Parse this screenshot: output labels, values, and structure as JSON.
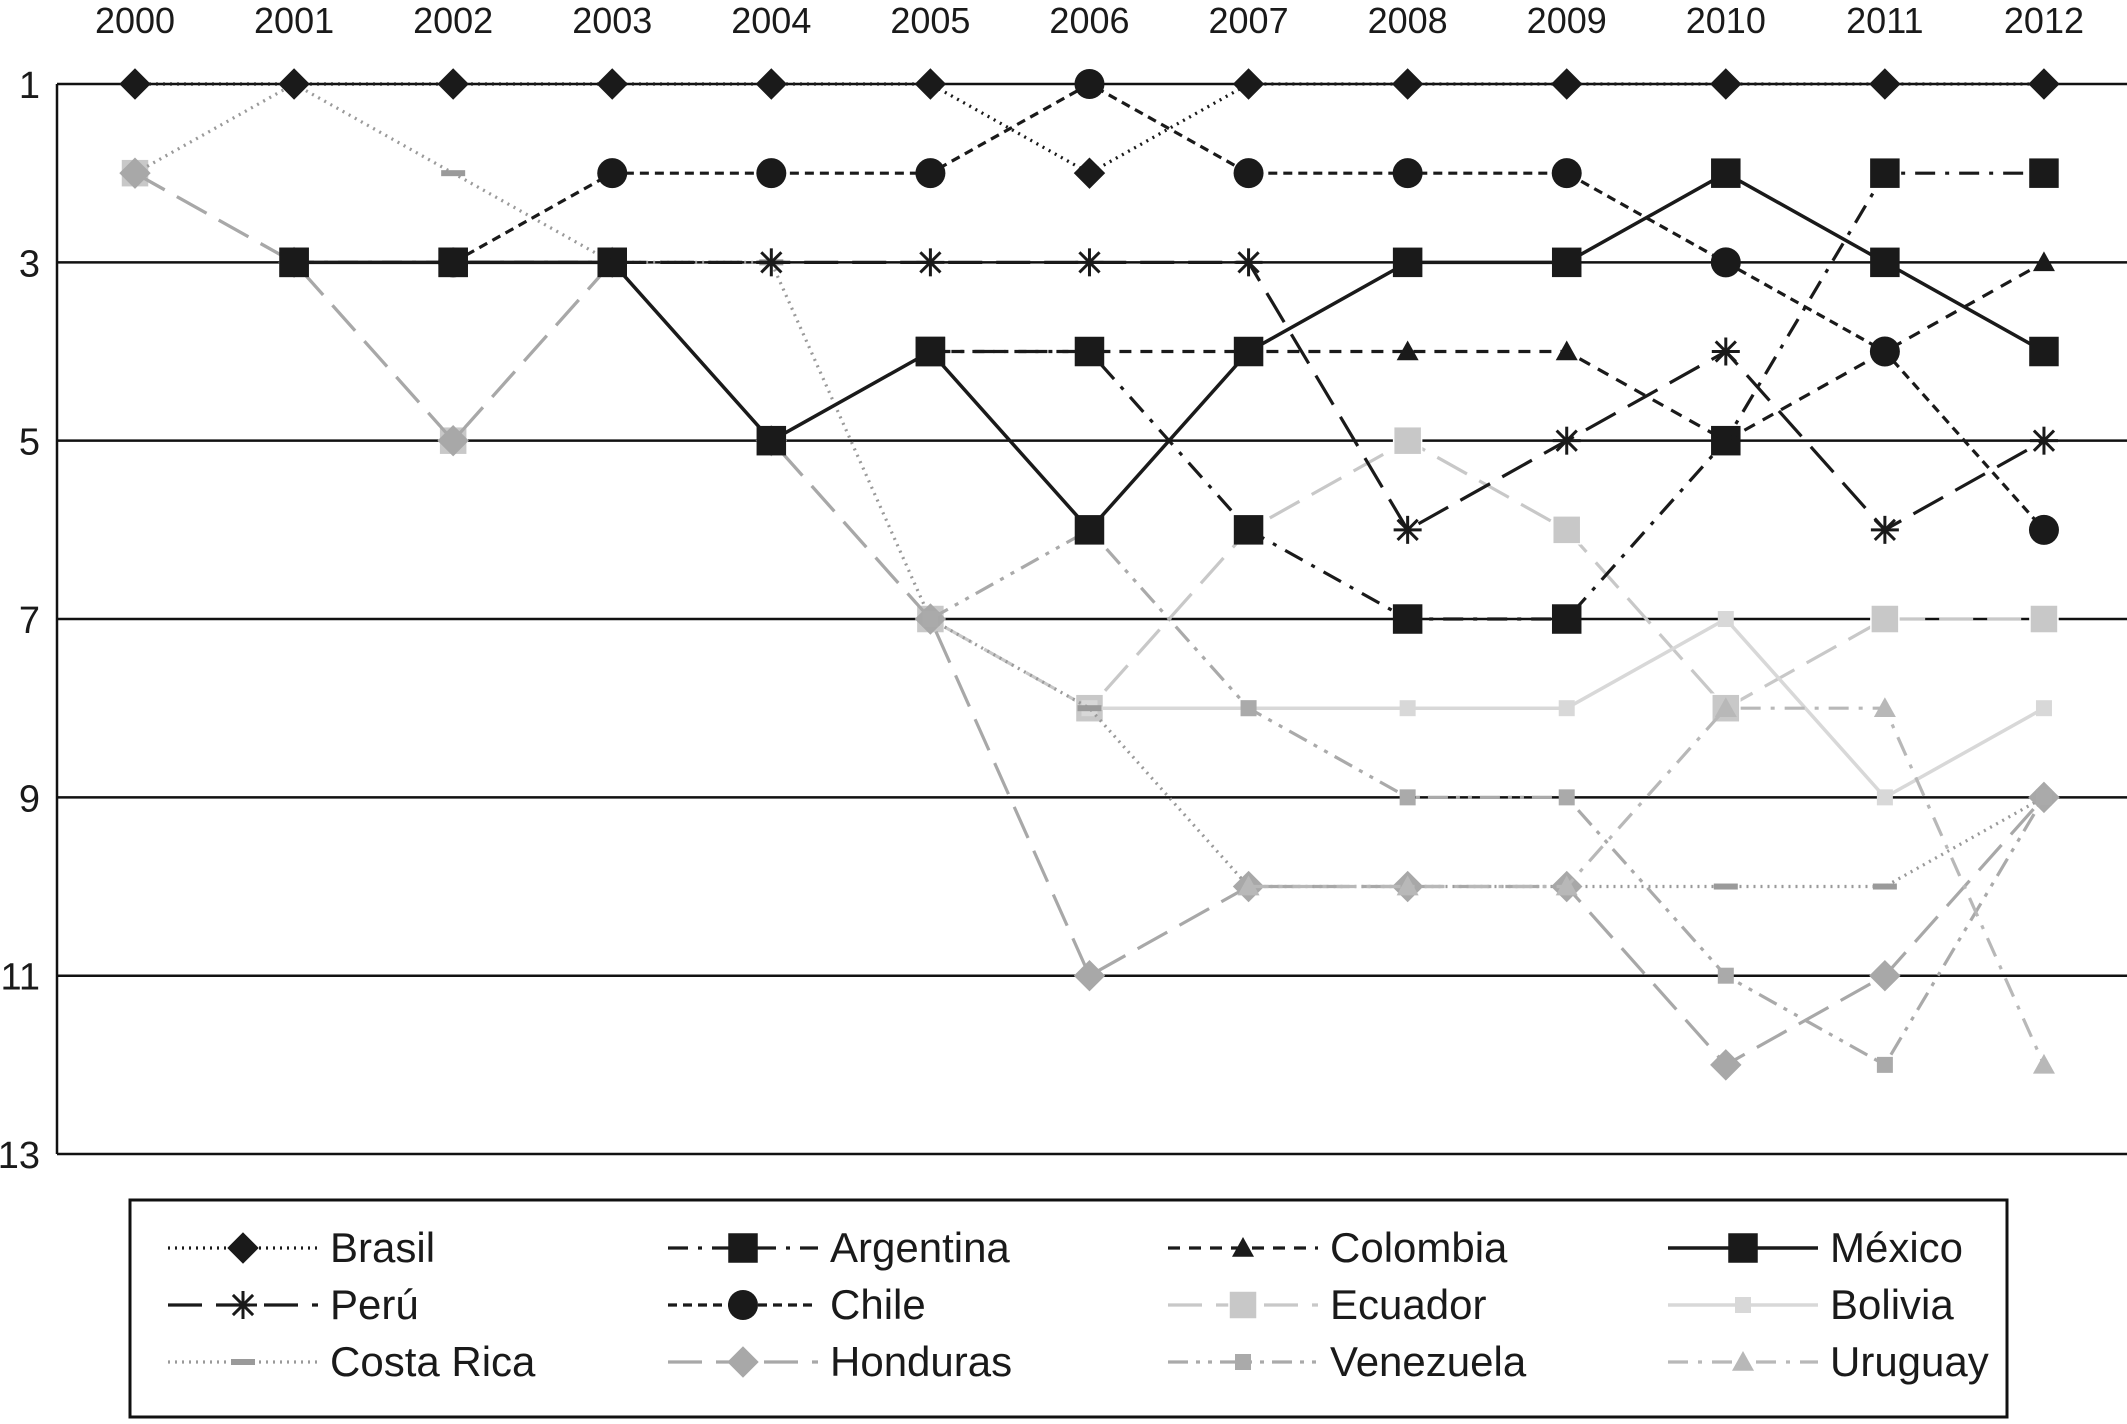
{
  "chart_data": {
    "type": "line",
    "title": "",
    "xlabel": "",
    "ylabel": "",
    "x": [
      "2000",
      "2001",
      "2002",
      "2003",
      "2004",
      "2005",
      "2006",
      "2007",
      "2008",
      "2009",
      "2010",
      "2011",
      "2012"
    ],
    "ylim": [
      1,
      13
    ],
    "y_inverted": true,
    "y_ticks": [
      1,
      3,
      5,
      7,
      9,
      11,
      13
    ],
    "grid": "horizontal lines at odd ranks",
    "legend_position": "bottom",
    "series": [
      {
        "name": "Brasil",
        "color": "#1a1a1a",
        "line_style": "dotted",
        "marker": "diamond",
        "values": [
          1,
          1,
          1,
          1,
          1,
          1,
          2,
          1,
          1,
          1,
          1,
          1,
          1
        ]
      },
      {
        "name": "Argentina",
        "color": "#1a1a1a",
        "line_style": "dash-dot",
        "marker": "square",
        "values": [
          null,
          3,
          3,
          3,
          null,
          4,
          4,
          6,
          7,
          7,
          5,
          2,
          2
        ]
      },
      {
        "name": "Colombia",
        "color": "#1a1a1a",
        "line_style": "dashed",
        "marker": "triangle",
        "values": [
          null,
          null,
          null,
          null,
          null,
          4,
          4,
          4,
          4,
          4,
          5,
          4,
          3
        ]
      },
      {
        "name": "México",
        "color": "#1a1a1a",
        "line_style": "solid",
        "marker": "square",
        "values": [
          null,
          3,
          3,
          3,
          5,
          4,
          6,
          4,
          3,
          3,
          2,
          3,
          4
        ]
      },
      {
        "name": "Perú",
        "color": "#1a1a1a",
        "line_style": "long-dash",
        "marker": "asterisk",
        "values": [
          null,
          null,
          null,
          3,
          3,
          3,
          3,
          3,
          6,
          5,
          4,
          6,
          5
        ]
      },
      {
        "name": "Chile",
        "color": "#1a1a1a",
        "line_style": "short-dash",
        "marker": "circle",
        "values": [
          null,
          null,
          3,
          2,
          2,
          2,
          1,
          2,
          2,
          2,
          3,
          4,
          6
        ]
      },
      {
        "name": "Ecuador",
        "color": "#c8c8c8",
        "line_style": "long-dash",
        "marker": "square",
        "values": [
          2,
          3,
          5,
          3,
          5,
          7,
          8,
          6,
          5,
          6,
          8,
          7,
          7
        ]
      },
      {
        "name": "Bolivia",
        "color": "#d8d8d8",
        "line_style": "solid",
        "marker": "small-square",
        "values": [
          null,
          null,
          null,
          null,
          null,
          null,
          8,
          8,
          8,
          8,
          7,
          9,
          8
        ]
      },
      {
        "name": "Costa Rica",
        "color": "#9a9a9a",
        "line_style": "dotted",
        "marker": "dash",
        "values": [
          2,
          1,
          2,
          3,
          3,
          7,
          8,
          10,
          10,
          10,
          10,
          10,
          9
        ]
      },
      {
        "name": "Honduras",
        "color": "#a8a8a8",
        "line_style": "long-dash",
        "marker": "diamond",
        "values": [
          2,
          3,
          5,
          3,
          5,
          7,
          11,
          10,
          10,
          10,
          12,
          11,
          9
        ]
      },
      {
        "name": "Venezuela",
        "color": "#aaaaaa",
        "line_style": "dash-dot-dot",
        "marker": "small-square",
        "values": [
          null,
          null,
          null,
          null,
          null,
          7,
          6,
          8,
          9,
          9,
          11,
          12,
          9
        ]
      },
      {
        "name": "Uruguay",
        "color": "#b8b8b8",
        "line_style": "dash-dot",
        "marker": "triangle",
        "values": [
          null,
          null,
          null,
          null,
          null,
          null,
          null,
          10,
          10,
          10,
          8,
          8,
          12
        ]
      }
    ]
  }
}
